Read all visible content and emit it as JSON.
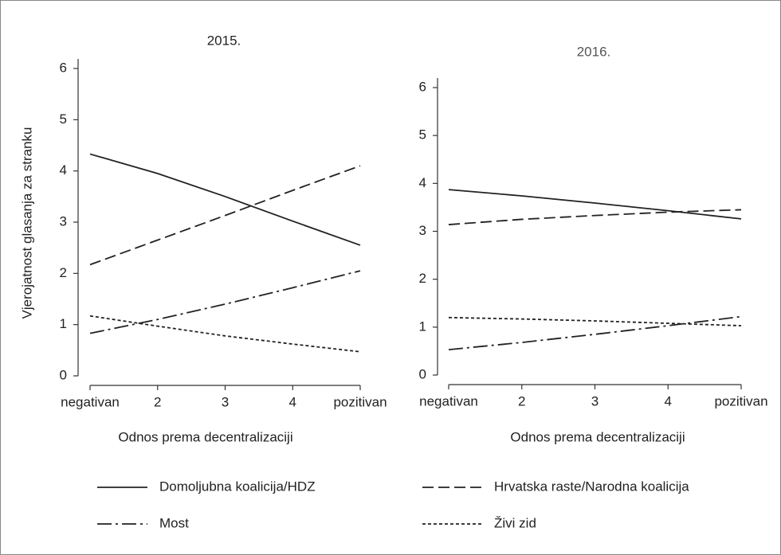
{
  "chart_data": [
    {
      "type": "line",
      "title": "2015.",
      "x_label": "Odnos prema decentralizaciji",
      "y_label": "Vjerojatnost glasanja za stranku",
      "categories": [
        "negativan",
        "2",
        "3",
        "4",
        "pozitivan"
      ],
      "ylim": [
        0,
        6
      ],
      "yticks": [
        0,
        1,
        2,
        3,
        4,
        5,
        6
      ],
      "series": [
        {
          "name": "Domoljubna koalicija/HDZ",
          "color": "#222222",
          "dash": "solid",
          "values": [
            4.33,
            3.95,
            3.5,
            3.02,
            2.55
          ]
        },
        {
          "name": "Hrvatska raste/Narodna koalicija",
          "color": "#222222",
          "dash": "dashed",
          "values": [
            2.17,
            2.65,
            3.13,
            3.62,
            4.1
          ]
        },
        {
          "name": "Most",
          "color": "#222222",
          "dash": "dashdot",
          "values": [
            0.83,
            1.1,
            1.4,
            1.72,
            2.05
          ]
        },
        {
          "name": "Živi zid",
          "color": "#222222",
          "dash": "dotted",
          "values": [
            1.17,
            0.97,
            0.78,
            0.62,
            0.47
          ]
        }
      ]
    },
    {
      "type": "line",
      "title": "2016.",
      "x_label": "Odnos prema decentralizaciji",
      "categories": [
        "negativan",
        "2",
        "3",
        "4",
        "pozitivan"
      ],
      "ylim": [
        0,
        6
      ],
      "yticks": [
        0,
        1,
        2,
        3,
        4,
        5,
        6
      ],
      "series": [
        {
          "name": "Domoljubna koalicija/HDZ",
          "color": "#222222",
          "dash": "solid",
          "values": [
            3.87,
            3.74,
            3.59,
            3.43,
            3.26
          ]
        },
        {
          "name": "Hrvatska raste/Narodna koalicija",
          "color": "#222222",
          "dash": "dashed",
          "values": [
            3.14,
            3.25,
            3.33,
            3.4,
            3.45
          ]
        },
        {
          "name": "Most",
          "color": "#222222",
          "dash": "dashdot",
          "values": [
            0.53,
            0.68,
            0.85,
            1.03,
            1.22
          ]
        },
        {
          "name": "Živi zid",
          "color": "#222222",
          "dash": "dotted",
          "values": [
            1.2,
            1.17,
            1.13,
            1.08,
            1.03
          ]
        }
      ]
    }
  ]
}
